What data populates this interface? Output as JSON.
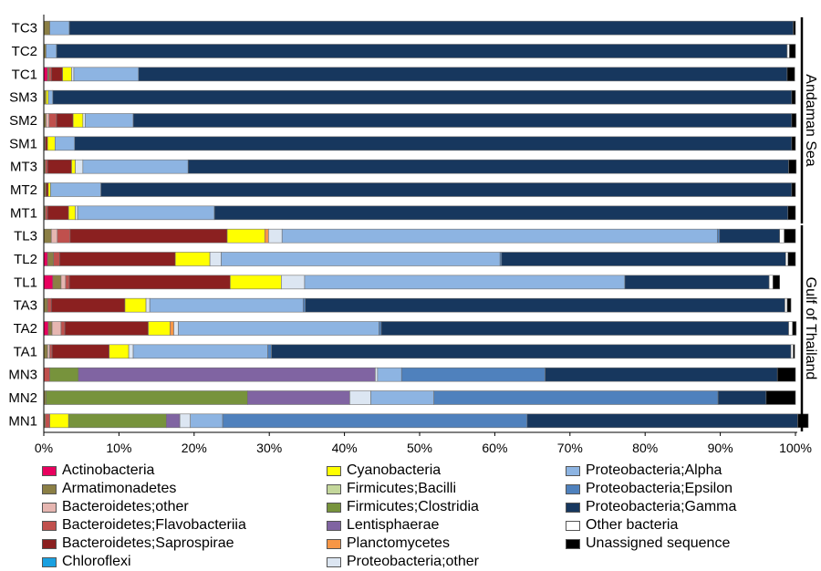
{
  "chart_data": {
    "type": "bar",
    "orientation": "horizontal",
    "stacked": "100%",
    "categories": [
      "TC3",
      "TC2",
      "TC1",
      "SM3",
      "SM2",
      "SM1",
      "MT3",
      "MT2",
      "MT1",
      "TL3",
      "TL2",
      "TL1",
      "TA3",
      "TA2",
      "TA1",
      "MN3",
      "MN2",
      "MN1"
    ],
    "x_ticks": [
      "0%",
      "10%",
      "20%",
      "30%",
      "40%",
      "50%",
      "60%",
      "70%",
      "80%",
      "90%",
      "100%"
    ],
    "xlim": [
      0,
      100
    ],
    "grid": false,
    "legend_position": "bottom",
    "groups": [
      {
        "label": "Andaman Sea",
        "categories": [
          "TC3",
          "TC2",
          "TC1",
          "SM3",
          "SM2",
          "SM1",
          "MT3",
          "MT2",
          "MT1"
        ]
      },
      {
        "label": "Gulf of Thailand",
        "categories": [
          "TL3",
          "TL2",
          "TL1",
          "TA3",
          "TA2",
          "TA1",
          "MN3",
          "MN2",
          "MN1"
        ]
      }
    ],
    "series": [
      {
        "name": "Actinobacteria",
        "color": "#e8005e",
        "values": [
          0,
          0,
          0.5,
          0,
          0,
          0,
          0,
          0,
          0,
          0,
          0.5,
          1.2,
          0,
          0.6,
          0,
          0,
          0,
          0
        ]
      },
      {
        "name": "Armatimonadetes",
        "color": "#8b7f45",
        "values": [
          0.8,
          0.3,
          0.2,
          0.3,
          0.3,
          0.2,
          0.2,
          0.3,
          0.2,
          1.0,
          0.8,
          1.1,
          0.5,
          0.5,
          0.5,
          0,
          0.3,
          0.2
        ]
      },
      {
        "name": "Bacteroidetes;other",
        "color": "#e6b6b1",
        "values": [
          0,
          0,
          0,
          0,
          0.4,
          0,
          0,
          0,
          0,
          0.8,
          0,
          0.6,
          0,
          1.2,
          0.3,
          0,
          0,
          0
        ]
      },
      {
        "name": "Bacteroidetes;Flavobacteriia",
        "color": "#c0504d",
        "values": [
          0,
          0,
          0.3,
          0,
          1.0,
          0,
          0.3,
          0,
          0.3,
          1.7,
          0.8,
          0.5,
          0.5,
          0.5,
          0.3,
          0.8,
          0,
          0.6
        ]
      },
      {
        "name": "Bacteroidetes;Saprospirae",
        "color": "#8b2020",
        "values": [
          0,
          0,
          1.5,
          0,
          2.2,
          0.3,
          3.2,
          0.3,
          2.8,
          20.9,
          15.4,
          21.4,
          9.8,
          11.1,
          7.6,
          0,
          0,
          0
        ]
      },
      {
        "name": "Chloroflexi",
        "color": "#1aa0e0",
        "values": [
          0,
          0,
          0,
          0,
          0,
          0,
          0,
          0,
          0,
          0,
          0,
          0,
          0,
          0,
          0,
          0,
          0,
          0
        ]
      },
      {
        "name": "Cyanobacteria",
        "color": "#ffff00",
        "values": [
          0,
          0,
          1.2,
          0.3,
          1.3,
          1.0,
          0.5,
          0.3,
          0.9,
          5.0,
          4.6,
          6.8,
          2.8,
          2.9,
          2.6,
          0,
          0,
          2.5
        ]
      },
      {
        "name": "Firmicutes;Bacilli",
        "color": "#c4d79b",
        "values": [
          0,
          0,
          0,
          0,
          0,
          0,
          0,
          0,
          0,
          0,
          0,
          0,
          0,
          0,
          0,
          0,
          0,
          0
        ]
      },
      {
        "name": "Firmicutes;Clostridia",
        "color": "#77933c",
        "values": [
          0,
          0,
          0,
          0,
          0,
          0,
          0,
          0,
          0,
          0,
          0,
          0,
          0,
          0,
          0,
          3.8,
          26.8,
          13.0
        ]
      },
      {
        "name": "Lentisphaerae",
        "color": "#8064a2",
        "values": [
          0,
          0,
          0,
          0,
          0,
          0,
          0,
          0,
          0,
          0,
          0,
          0,
          0,
          0,
          0,
          39.5,
          13.6,
          1.8
        ]
      },
      {
        "name": "Planctomycetes",
        "color": "#f79646",
        "values": [
          0,
          0,
          0,
          0,
          0,
          0,
          0,
          0,
          0,
          0.5,
          0,
          0,
          0,
          0.5,
          0,
          0,
          0,
          0
        ]
      },
      {
        "name": "Proteobacteria;other",
        "color": "#dce6f2",
        "values": [
          0,
          0,
          0.3,
          0,
          0.3,
          0,
          1.0,
          0,
          0.3,
          1.8,
          1.5,
          3.1,
          0.5,
          0.6,
          0.6,
          0.3,
          2.8,
          1.4
        ]
      },
      {
        "name": "Proteobacteria;Alpha",
        "color": "#8db4e2",
        "values": [
          2.6,
          1.4,
          8.6,
          0.6,
          6.4,
          2.6,
          14.0,
          6.7,
          18.2,
          57.9,
          37.1,
          42.6,
          20.4,
          26.7,
          17.9,
          3.2,
          8.4,
          4.3
        ]
      },
      {
        "name": "Proteobacteria;Epsilon",
        "color": "#4f81bd",
        "values": [
          0,
          0,
          0,
          0,
          0,
          0,
          0,
          0,
          0,
          0.3,
          0.2,
          0,
          0.3,
          0.3,
          0.5,
          19.1,
          37.8,
          40.5
        ]
      },
      {
        "name": "Proteobacteria;Gamma",
        "color": "#17375e",
        "values": [
          96.3,
          97.2,
          86.3,
          98.3,
          87.6,
          95.4,
          79.9,
          91.9,
          76.3,
          8.0,
          37.8,
          19.2,
          63.8,
          54.2,
          69.1,
          30.9,
          6.4,
          36.0
        ]
      },
      {
        "name": "Other bacteria",
        "color": "#ffffff",
        "values": [
          0,
          0.3,
          0,
          0,
          0,
          0,
          0,
          0,
          0,
          0.6,
          0.3,
          0.5,
          0.3,
          0.5,
          0.3,
          0,
          0,
          0
        ]
      },
      {
        "name": "Unassigned sequence",
        "color": "#000000",
        "values": [
          0.3,
          0.8,
          1.0,
          0.5,
          0.6,
          0.5,
          1.0,
          0.5,
          1.0,
          1.5,
          1.0,
          0.9,
          0.5,
          0.5,
          0.2,
          2.4,
          3.9,
          1.4
        ]
      }
    ]
  }
}
